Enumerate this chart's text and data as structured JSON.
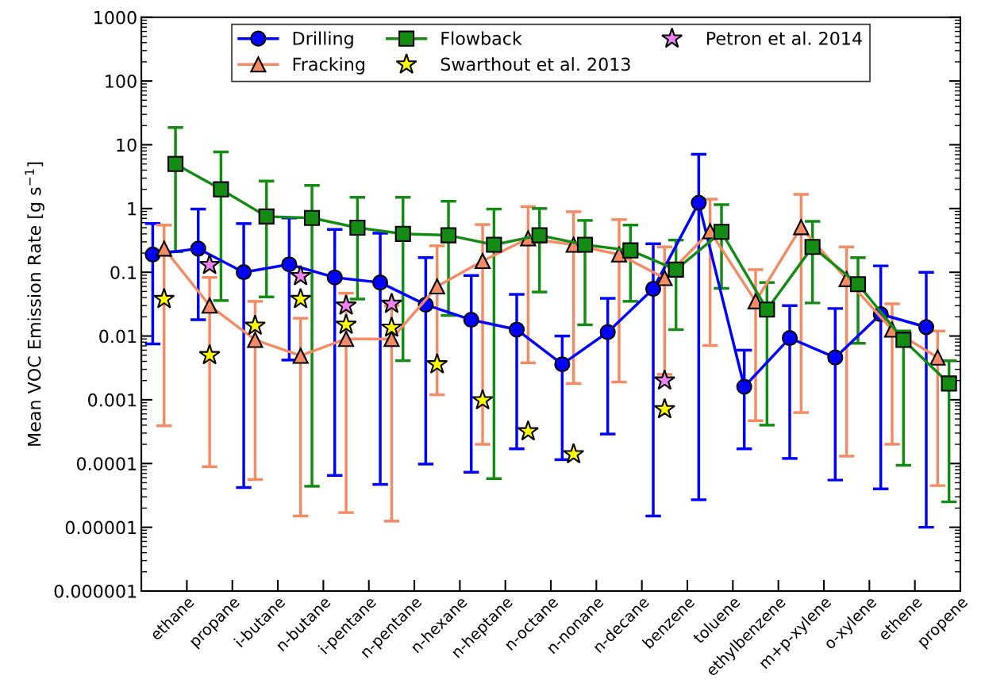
{
  "chart_data": {
    "type": "line",
    "ylabel": "Mean VOC Emission Rate [g s$^{−1}$]",
    "categories": [
      "ethane",
      "propane",
      "i-butane",
      "n-butane",
      "i-pentane",
      "n-pentane",
      "n-hexane",
      "n-heptane",
      "n-octane",
      "n-nonane",
      "n-decane",
      "benzene",
      "toluene",
      "ethylbenzene",
      "m+p-xylene",
      "o-xylene",
      "ethene",
      "propene"
    ],
    "log": "y",
    "ylim": [
      1e-06,
      1000
    ],
    "yticks": [
      {
        "value": 1e-06,
        "label": "0.000001"
      },
      {
        "value": 1e-05,
        "label": "0.00001"
      },
      {
        "value": 0.0001,
        "label": "0.0001"
      },
      {
        "value": 0.001,
        "label": "0.001"
      },
      {
        "value": 0.01,
        "label": "0.01"
      },
      {
        "value": 0.1,
        "label": "0.1"
      },
      1,
      10,
      100,
      1000
    ],
    "legend": "top",
    "grid": false,
    "series": [
      {
        "name": "Drilling",
        "marker": "circle",
        "color": "#0000ff",
        "values": [
          0.19,
          0.235,
          0.1,
          0.133,
          0.083,
          0.069,
          0.031,
          0.018,
          0.0126,
          0.0036,
          0.0115,
          0.055,
          1.23,
          0.0016,
          0.0093,
          0.0046,
          0.022,
          0.0138
        ],
        "errors": [
          [
            0.0075,
            0.58
          ],
          [
            0.018,
            0.98
          ],
          [
            4.2e-05,
            0.58
          ],
          [
            0.0042,
            0.71
          ],
          [
            6.5e-05,
            0.47
          ],
          [
            4.7e-05,
            0.41
          ],
          [
            9.8e-05,
            0.17
          ],
          [
            7.3e-05,
            0.089
          ],
          [
            0.00017,
            0.045
          ],
          [
            0.000115,
            0.01
          ],
          [
            0.00029,
            0.039
          ],
          [
            1.5e-05,
            0.28
          ],
          [
            2.7e-05,
            7.1
          ],
          [
            0.00017,
            0.006
          ],
          [
            0.00012,
            0.03
          ],
          [
            5.5e-05,
            0.027
          ],
          [
            4e-05,
            0.126
          ],
          [
            1e-05,
            0.1
          ]
        ]
      },
      {
        "name": "Fracking",
        "marker": "triangle",
        "color": "#f58b64",
        "values": [
          0.235,
          0.03,
          0.0087,
          0.0049,
          0.009,
          0.009,
          0.06,
          0.15,
          0.34,
          0.27,
          0.19,
          0.081,
          0.44,
          0.035,
          0.51,
          0.078,
          0.0126,
          0.0046
        ],
        "errors": [
          [
            0.00039,
            0.55
          ],
          [
            8.9e-05,
            0.083
          ],
          [
            5.6e-05,
            0.035
          ],
          [
            1.5e-05,
            0.019
          ],
          [
            1.7e-05,
            0.047
          ],
          [
            1.25e-05,
            0.03
          ],
          [
            0.0012,
            0.26
          ],
          [
            0.0002,
            0.56
          ],
          [
            0.0038,
            1.07
          ],
          [
            0.0018,
            0.89
          ],
          [
            0.0019,
            0.67
          ],
          [
            0.0025,
            0.25
          ],
          [
            0.0071,
            1.4
          ],
          [
            0.00047,
            0.11
          ],
          [
            0.00063,
            1.67
          ],
          [
            0.00013,
            0.25
          ],
          [
            0.0002,
            0.032
          ],
          [
            4.5e-05,
            0.012
          ]
        ]
      },
      {
        "name": "Flowback",
        "marker": "square",
        "color": "#148c14",
        "values": [
          5.0,
          2.0,
          0.75,
          0.71,
          0.5,
          0.4,
          0.38,
          0.27,
          0.38,
          0.27,
          0.22,
          0.11,
          0.43,
          0.026,
          0.25,
          0.065,
          0.0087,
          0.0018
        ],
        "errors": [
          [
            0.21,
            18.7
          ],
          [
            0.036,
            7.7
          ],
          [
            0.041,
            2.7
          ],
          [
            4.4e-05,
            2.3
          ],
          [
            0.038,
            1.5
          ],
          [
            0.0041,
            1.5
          ],
          [
            0.021,
            1.3
          ],
          [
            5.8e-05,
            0.98
          ],
          [
            0.049,
            1.0
          ],
          [
            0.015,
            0.65
          ],
          [
            0.035,
            0.55
          ],
          [
            0.0126,
            0.32
          ],
          [
            0.056,
            1.15
          ],
          [
            0.0004,
            0.069
          ],
          [
            0.033,
            0.63
          ],
          [
            0.0077,
            0.17
          ],
          [
            9.4e-05,
            0.012
          ],
          [
            2.5e-05,
            0.0041
          ]
        ]
      },
      {
        "name": "Swarthout et al. 2013",
        "type": "scatter",
        "marker": "star",
        "color": "#ffff00",
        "values": [
          0.038,
          0.005,
          0.0145,
          0.038,
          0.015,
          0.0135,
          0.0036,
          0.00098,
          0.00032,
          0.00014,
          null,
          0.00071,
          null,
          null,
          null,
          null,
          null,
          null
        ]
      },
      {
        "name": "Petron et al. 2014",
        "type": "scatter",
        "marker": "star",
        "color": "#ee82ee",
        "values": [
          null,
          0.13,
          null,
          0.087,
          0.03,
          0.032,
          null,
          null,
          null,
          null,
          null,
          0.002,
          null,
          null,
          null,
          null,
          null,
          null
        ]
      }
    ]
  }
}
